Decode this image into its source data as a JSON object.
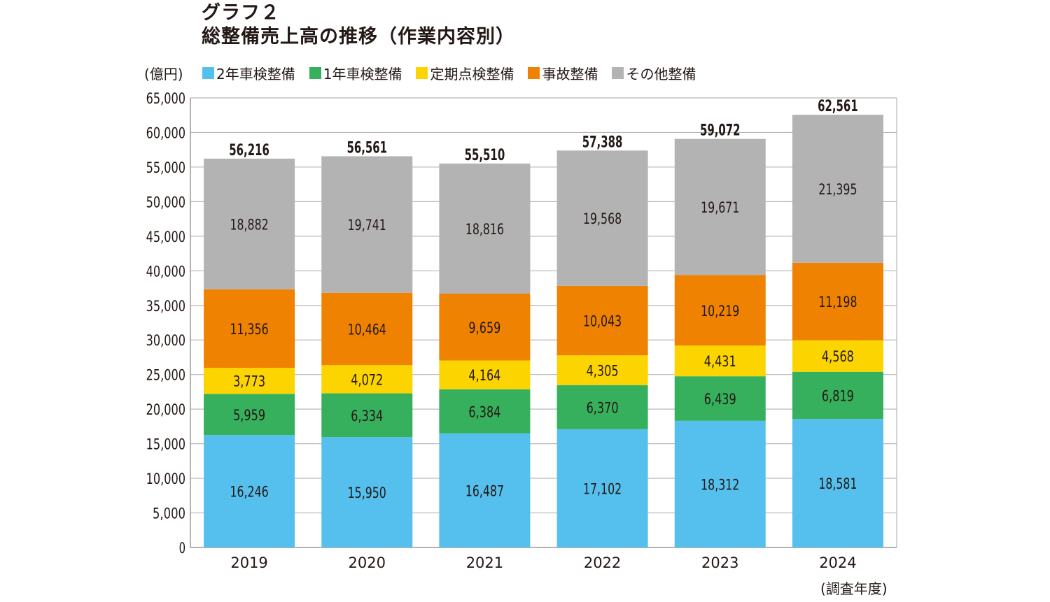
{
  "title": {
    "line1": "グラフ２",
    "line2": "総整備売上高の推移（作業内容別）"
  },
  "unit_label": "(億円)",
  "x_axis_note": "(調査年度)",
  "chart_data": {
    "type": "bar",
    "stacked": true,
    "categories": [
      "2019",
      "2020",
      "2021",
      "2022",
      "2023",
      "2024"
    ],
    "series": [
      {
        "name": "2年車検整備",
        "color": "#55c0ee",
        "values": [
          16246,
          15950,
          16487,
          17102,
          18312,
          18581
        ]
      },
      {
        "name": "1年車検整備",
        "color": "#36b05c",
        "values": [
          5959,
          6334,
          6384,
          6370,
          6439,
          6819
        ]
      },
      {
        "name": "定期点検整備",
        "color": "#fcd400",
        "values": [
          3773,
          4072,
          4164,
          4305,
          4431,
          4568
        ]
      },
      {
        "name": "事故整備",
        "color": "#ef8200",
        "values": [
          11356,
          10464,
          9659,
          10043,
          10219,
          11198
        ]
      },
      {
        "name": "その他整備",
        "color": "#b3b3b3",
        "values": [
          18882,
          19741,
          18816,
          19568,
          19671,
          21395
        ]
      }
    ],
    "totals": [
      56216,
      56561,
      55510,
      57388,
      59072,
      62561
    ],
    "ylim": [
      0,
      65000
    ],
    "yticks": [
      0,
      5000,
      10000,
      15000,
      20000,
      25000,
      30000,
      35000,
      40000,
      45000,
      50000,
      55000,
      60000,
      65000
    ],
    "grid": true,
    "legend_position": "top"
  }
}
